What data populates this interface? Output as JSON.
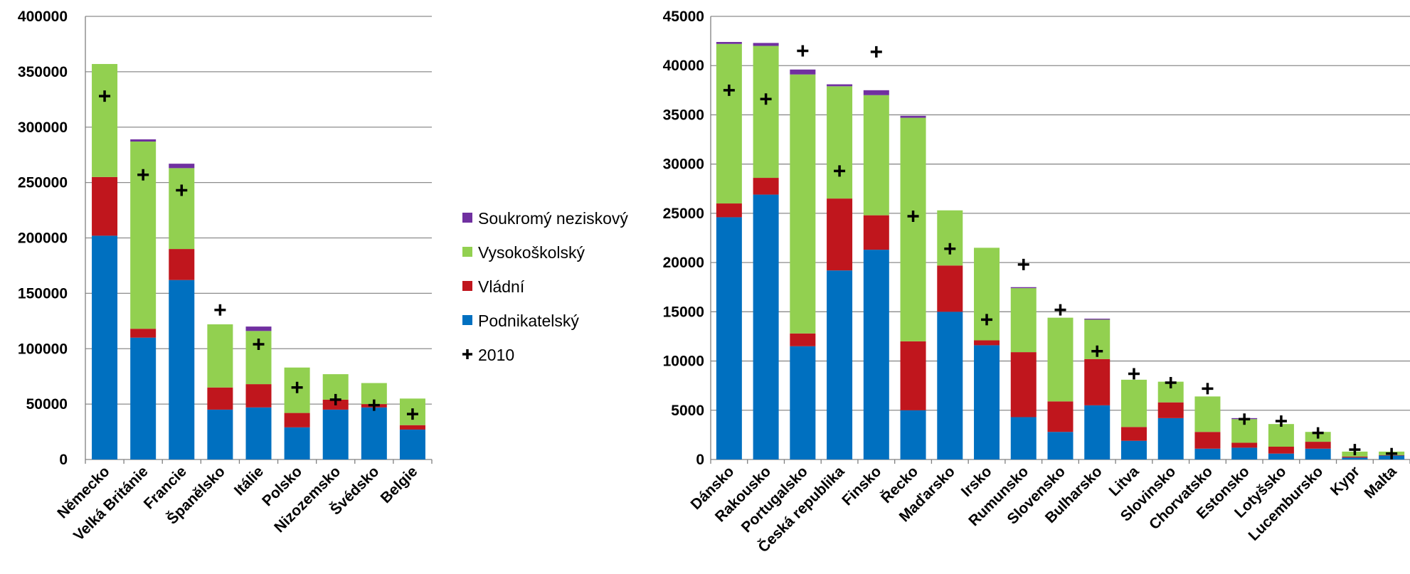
{
  "legend": {
    "items": [
      {
        "label": "Soukromý neziskový",
        "color": "#7030A0",
        "kind": "square"
      },
      {
        "label": "Vysokoškolský",
        "color": "#92D050",
        "kind": "square"
      },
      {
        "label": "Vládní",
        "color": "#C0161D",
        "kind": "square"
      },
      {
        "label": "Podnikatelský",
        "color": "#0070C0",
        "kind": "square"
      },
      {
        "label": "2010",
        "color": "#000000",
        "kind": "plus"
      }
    ]
  },
  "chart_data": [
    {
      "type": "bar",
      "stacked": true,
      "categories": [
        "Německo",
        "Velká Británie",
        "Francie",
        "Španělsko",
        "Itálie",
        "Polsko",
        "Nizozemsko",
        "Švédsko",
        "Belgie"
      ],
      "ylim": [
        0,
        400000
      ],
      "yticks": [
        0,
        50000,
        100000,
        150000,
        200000,
        250000,
        300000,
        350000,
        400000
      ],
      "grid": true,
      "series": [
        {
          "name": "Podnikatelský",
          "color": "#0070C0",
          "values": [
            202000,
            110000,
            162000,
            45000,
            47000,
            29000,
            45000,
            47000,
            27000
          ]
        },
        {
          "name": "Vládní",
          "color": "#C0161D",
          "values": [
            53000,
            8000,
            28000,
            20000,
            21000,
            13000,
            9000,
            3000,
            4000
          ]
        },
        {
          "name": "Vysokoškolský",
          "color": "#92D050",
          "values": [
            102000,
            169000,
            73000,
            57000,
            48000,
            41000,
            23000,
            19000,
            24000
          ]
        },
        {
          "name": "Soukromý neziskový",
          "color": "#7030A0",
          "values": [
            0,
            2000,
            4000,
            0,
            4000,
            0,
            0,
            0,
            0
          ]
        }
      ],
      "markers": {
        "name": "2010",
        "values": [
          328000,
          257000,
          243000,
          135000,
          104000,
          65000,
          54000,
          49000,
          41000
        ]
      }
    },
    {
      "type": "bar",
      "stacked": true,
      "categories": [
        "Dánsko",
        "Rakousko",
        "Portugalsko",
        "Česká republika",
        "Finsko",
        "Řecko",
        "Maďarsko",
        "Irsko",
        "Rumunsko",
        "Slovensko",
        "Bulharsko",
        "Litva",
        "Slovinsko",
        "Chorvatsko",
        "Estonsko",
        "Lotyšsko",
        "Lucembursko",
        "Kypr",
        "Malta"
      ],
      "ylim": [
        0,
        45000
      ],
      "yticks": [
        0,
        5000,
        10000,
        15000,
        20000,
        25000,
        30000,
        35000,
        40000,
        45000
      ],
      "grid": true,
      "series": [
        {
          "name": "Podnikatelský",
          "color": "#0070C0",
          "values": [
            24600,
            26900,
            11500,
            19200,
            21300,
            5000,
            15000,
            11600,
            4300,
            2800,
            5500,
            1900,
            4200,
            1100,
            1200,
            600,
            1100,
            200,
            400
          ]
        },
        {
          "name": "Vládní",
          "color": "#C0161D",
          "values": [
            1400,
            1700,
            1300,
            7300,
            3500,
            7000,
            4700,
            500,
            6600,
            3100,
            4700,
            1400,
            1600,
            1700,
            500,
            700,
            700,
            100,
            50
          ]
        },
        {
          "name": "Vysokoškolský",
          "color": "#92D050",
          "values": [
            16200,
            13400,
            26300,
            11400,
            12200,
            22700,
            5600,
            9400,
            6500,
            8500,
            4000,
            4800,
            2100,
            3600,
            2400,
            2300,
            1000,
            500,
            350
          ]
        },
        {
          "name": "Soukromý neziskový",
          "color": "#7030A0",
          "values": [
            200,
            300,
            500,
            200,
            500,
            200,
            0,
            0,
            100,
            0,
            100,
            0,
            0,
            0,
            100,
            0,
            0,
            0,
            0
          ]
        }
      ],
      "markers": {
        "name": "2010",
        "values": [
          37500,
          36600,
          41500,
          29300,
          41400,
          24700,
          21400,
          14200,
          19800,
          15200,
          11000,
          8700,
          7800,
          7200,
          4100,
          3900,
          2700,
          1000,
          600
        ]
      }
    }
  ]
}
